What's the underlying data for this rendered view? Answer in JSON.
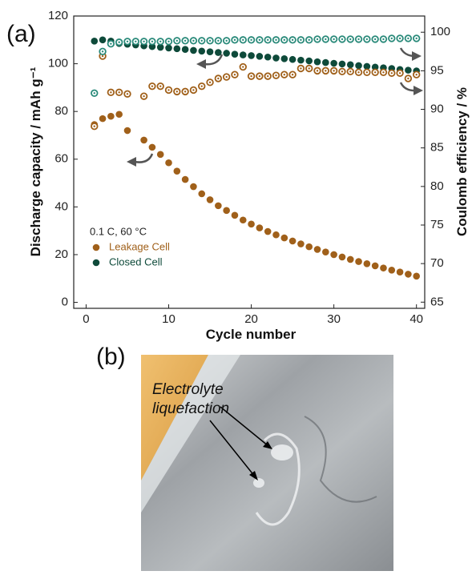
{
  "chart_data": {
    "type": "scatter",
    "panel_label": "(a)",
    "xlabel": "Cycle number",
    "ylabel": "Discharge capacity / mAh g⁻¹",
    "y2label": "Coulomb efficiency / %",
    "legend_title": "0.1 C, 60 °C",
    "legend": "lower left",
    "x": [
      1,
      2,
      3,
      4,
      5,
      6,
      7,
      8,
      9,
      10,
      11,
      12,
      13,
      14,
      15,
      16,
      17,
      18,
      19,
      20,
      21,
      22,
      23,
      24,
      25,
      26,
      27,
      28,
      29,
      30,
      31,
      32,
      33,
      34,
      35,
      36,
      37,
      38,
      39,
      40
    ],
    "xlim": [
      -1.5,
      41
    ],
    "xticks": [
      0,
      10,
      20,
      30,
      40
    ],
    "ylim": [
      -2.5,
      120
    ],
    "yticks": [
      0,
      20,
      40,
      60,
      80,
      100,
      120
    ],
    "y2lim": [
      64.2,
      102.1
    ],
    "y2ticks": [
      65,
      70,
      75,
      80,
      85,
      90,
      95,
      100
    ],
    "series": [
      {
        "name": "Leakage Cell",
        "color": "#a0601a",
        "marker": "filled",
        "values": [
          74.5,
          77,
          78,
          78.8,
          72,
          null,
          68,
          65,
          62,
          58.5,
          55,
          51.5,
          48.5,
          45.5,
          43,
          40.5,
          38.5,
          36.5,
          34.5,
          32.8,
          31.2,
          29.7,
          28.3,
          27,
          25.7,
          24.5,
          23.3,
          22.2,
          21.1,
          20,
          19,
          18,
          17.1,
          16.2,
          15.3,
          14.4,
          13.5,
          12.7,
          11.8,
          11
        ]
      },
      {
        "name": "Closed Cell",
        "color": "#0e4a3a",
        "marker": "filled",
        "values": [
          109.5,
          110,
          109.5,
          108.5,
          108.2,
          107.9,
          107.5,
          107.2,
          106.9,
          106.6,
          106.3,
          106,
          105.6,
          105.3,
          105,
          104.7,
          104.4,
          104,
          103.7,
          103.4,
          103.1,
          102.8,
          102.4,
          102.1,
          101.8,
          101.5,
          101.2,
          100.8,
          100.5,
          100.2,
          99.9,
          99.6,
          99.2,
          98.9,
          98.6,
          98.3,
          98,
          97.6,
          97.3,
          97
        ]
      },
      {
        "color": "#a0601a",
        "marker": "open",
        "axis": "y2",
        "values": [
          87.8,
          96.9,
          92.2,
          92.2,
          92,
          null,
          91.7,
          93,
          93,
          92.5,
          92.3,
          92.3,
          92.5,
          93,
          93.5,
          94,
          94.2,
          94.5,
          95.5,
          94.3,
          94.3,
          94.3,
          94.4,
          94.5,
          94.5,
          95.3,
          95.3,
          95,
          95,
          95,
          94.9,
          94.9,
          94.8,
          94.8,
          94.8,
          94.8,
          94.7,
          94.7,
          94,
          94.5
        ]
      },
      {
        "color": "#2a8a7a",
        "marker": "open",
        "axis": "y2",
        "values": [
          92.1,
          97.5,
          98.5,
          98.7,
          98.8,
          98.8,
          98.8,
          98.8,
          98.8,
          98.8,
          98.9,
          98.9,
          98.9,
          98.9,
          98.9,
          98.9,
          98.9,
          99,
          99,
          99,
          99,
          99,
          99,
          99,
          99,
          99,
          99,
          99.1,
          99.1,
          99.1,
          99.1,
          99.1,
          99.1,
          99.1,
          99.1,
          99.1,
          99.2,
          99.2,
          99.2,
          99.2
        ]
      }
    ]
  },
  "photo": {
    "panel_label": "(b)",
    "annotation": [
      "Electrolyte",
      "liquefaction"
    ]
  }
}
